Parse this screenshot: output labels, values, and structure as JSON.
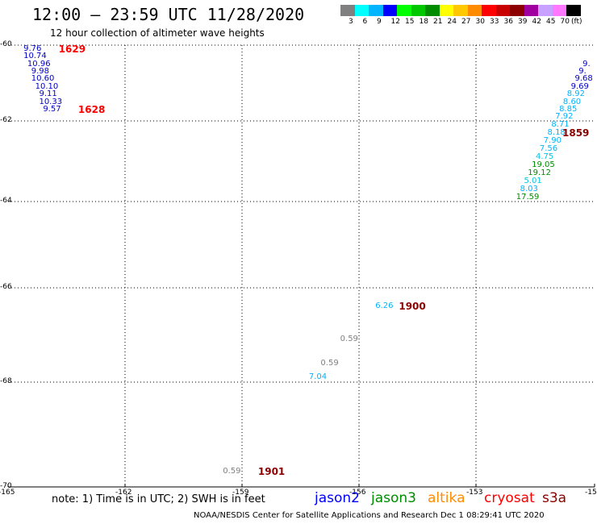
{
  "header": {
    "title": "12:00 – 23:59 UTC 11/28/2020",
    "subtitle": "12 hour collection of altimeter wave heights"
  },
  "scale": {
    "labels": [
      "3",
      "6",
      "9",
      "12",
      "15",
      "18",
      "21",
      "24",
      "27",
      "30",
      "33",
      "36",
      "39",
      "42",
      "45",
      "70",
      "(ft)"
    ],
    "colors": [
      "#808080",
      "#00ffff",
      "#00b4ff",
      "#0000ff",
      "#00ff00",
      "#00c800",
      "#008c00",
      "#ffff00",
      "#ffc800",
      "#ff8c00",
      "#ff0000",
      "#c80000",
      "#8c0000",
      "#a000a0",
      "#c8a0ff",
      "#ff78ff",
      "#000000"
    ]
  },
  "chart_data": {
    "type": "scatter",
    "title": "12:00 – 23:59 UTC 11/28/2020",
    "x_ticks": [
      "-165",
      "-162",
      "-159",
      "-156",
      "-153",
      "-15"
    ],
    "y_ticks": [
      "-60",
      "-62",
      "-64",
      "-66",
      "-68",
      "-70"
    ],
    "points": [
      {
        "x": -164.4,
        "y": -60.1,
        "value": "9.76",
        "color": "#0000c8"
      },
      {
        "x": -164.4,
        "y": -60.3,
        "value": "10.74",
        "color": "#0000c8"
      },
      {
        "x": -164.3,
        "y": -60.5,
        "value": "10.96",
        "color": "#0000c8"
      },
      {
        "x": -164.2,
        "y": -60.7,
        "value": "9.98",
        "color": "#0000c8"
      },
      {
        "x": -164.2,
        "y": -60.9,
        "value": "10.60",
        "color": "#0000c8"
      },
      {
        "x": -164.1,
        "y": -61.1,
        "value": "10.10",
        "color": "#0000c8"
      },
      {
        "x": -164.0,
        "y": -61.3,
        "value": "9.11",
        "color": "#0000c8"
      },
      {
        "x": -164.0,
        "y": -61.5,
        "value": "10.33",
        "color": "#0000c8"
      },
      {
        "x": -163.9,
        "y": -61.7,
        "value": "9.57",
        "color": "#0000c8"
      },
      {
        "x": -150.1,
        "y": -60.5,
        "value": "9.",
        "color": "#0000c8"
      },
      {
        "x": -150.2,
        "y": -60.7,
        "value": "9.",
        "color": "#0000c8"
      },
      {
        "x": -150.3,
        "y": -60.9,
        "value": "9.68",
        "color": "#0000c8"
      },
      {
        "x": -150.4,
        "y": -61.1,
        "value": "9.69",
        "color": "#0000c8"
      },
      {
        "x": -150.5,
        "y": -61.3,
        "value": "8.92",
        "color": "#00b4ff"
      },
      {
        "x": -150.6,
        "y": -61.5,
        "value": "8.60",
        "color": "#00b4ff"
      },
      {
        "x": -150.7,
        "y": -61.7,
        "value": "8.85",
        "color": "#00b4ff"
      },
      {
        "x": -150.8,
        "y": -61.9,
        "value": "7.92",
        "color": "#00b4ff"
      },
      {
        "x": -150.9,
        "y": -62.1,
        "value": "8.71",
        "color": "#00b4ff"
      },
      {
        "x": -151.0,
        "y": -62.3,
        "value": "8.18",
        "color": "#00b4ff"
      },
      {
        "x": -151.1,
        "y": -62.5,
        "value": "7.90",
        "color": "#00b4ff"
      },
      {
        "x": -151.2,
        "y": -62.7,
        "value": "7.56",
        "color": "#00b4ff"
      },
      {
        "x": -151.3,
        "y": -62.9,
        "value": "4.75",
        "color": "#00c8e6"
      },
      {
        "x": -151.4,
        "y": -63.1,
        "value": "19.05",
        "color": "#008c00"
      },
      {
        "x": -151.5,
        "y": -63.3,
        "value": "19.12",
        "color": "#008c00"
      },
      {
        "x": -151.6,
        "y": -63.5,
        "value": "5.01",
        "color": "#00c8e6"
      },
      {
        "x": -151.7,
        "y": -63.7,
        "value": "8.03",
        "color": "#00b4ff"
      },
      {
        "x": -151.8,
        "y": -63.9,
        "value": "17.59",
        "color": "#008c00"
      },
      {
        "x": -155.4,
        "y": -66.4,
        "value": "6.26",
        "color": "#00b4ff"
      },
      {
        "x": -156.3,
        "y": -67.1,
        "value": "0.59",
        "color": "#808080"
      },
      {
        "x": -156.8,
        "y": -67.6,
        "value": "0.59",
        "color": "#808080"
      },
      {
        "x": -157.1,
        "y": -67.9,
        "value": "7.04",
        "color": "#00b4ff"
      },
      {
        "x": -159.3,
        "y": -69.7,
        "value": "0.59",
        "color": "#808080"
      }
    ],
    "time_labels": [
      {
        "x": -163.5,
        "y": -60.1,
        "text": "1629",
        "color": "#ff0000"
      },
      {
        "x": -163.0,
        "y": -61.7,
        "text": "1628",
        "color": "#ff0000"
      },
      {
        "x": -150.1,
        "y": -62.3,
        "text": "1859",
        "color": "#8c0000"
      },
      {
        "x": -154.8,
        "y": -66.4,
        "text": "1900",
        "color": "#8c0000"
      },
      {
        "x": -158.4,
        "y": -69.7,
        "text": "1901",
        "color": "#8c0000"
      }
    ]
  },
  "note": "note: 1) Time is in UTC; 2) SWH is in feet",
  "legend": [
    {
      "label": "jason2",
      "color": "#0000ff"
    },
    {
      "label": "jason3",
      "color": "#008c00"
    },
    {
      "label": "altika",
      "color": "#ff8c00"
    },
    {
      "label": "cryosat",
      "color": "#ff0000"
    },
    {
      "label": "s3a",
      "color": "#8c0000"
    }
  ],
  "footer": "NOAA/NESDIS Center for Satellite Applications and Research    Dec  1 08:29:41 UTC 2020"
}
